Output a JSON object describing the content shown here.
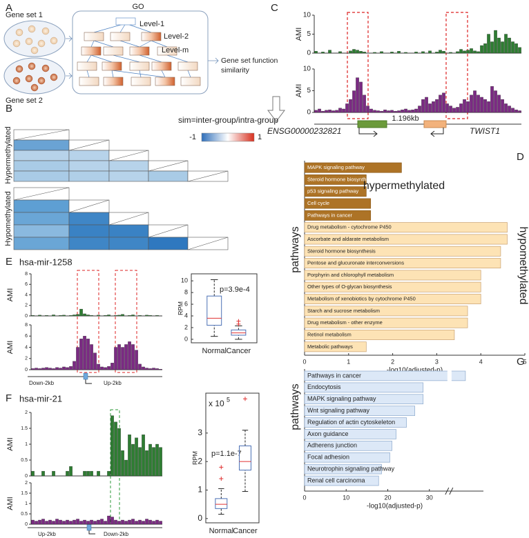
{
  "panel_labels": [
    "A",
    "B",
    "C",
    "D",
    "E",
    "F",
    "G"
  ],
  "panel_a": {
    "gene_set_1": "Gene set 1",
    "gene_set_2": "Gene set 2",
    "go": "GO",
    "level_1": "Level-1",
    "level_2": "Level-2",
    "level_m": "Level-m",
    "result": [
      "Gene set function",
      "similarity"
    ]
  },
  "panel_b": {
    "formula": "sim=inter-group/intra-group",
    "colorbar_ticks": [
      -1,
      1
    ],
    "row_groups": [
      "Hypermethylated",
      "Hypomethylated"
    ]
  },
  "gene_labels": {
    "c": [
      "1.196kb",
      "ENSG00000232821",
      "TWIST1"
    ],
    "e": [
      "hsa-mir-1258",
      "Down-2kb",
      "Up-2kb"
    ],
    "f": [
      "hsa-mir-21",
      "Up-2kb",
      "Down-2kb"
    ]
  },
  "chart_data": [
    {
      "type": "track",
      "ylabel": "AMI",
      "color": "#2e7d32",
      "ylim": [
        0,
        10
      ],
      "yticks": [
        0,
        5,
        10
      ],
      "values": [
        0.5,
        0,
        0.3,
        0,
        0.8,
        0,
        0,
        0.4,
        0,
        0,
        0.6,
        1,
        0.8,
        0.5,
        0.3,
        0,
        0,
        0.2,
        0,
        0.4,
        0,
        0,
        0.3,
        0,
        0.5,
        0,
        0.2,
        0,
        0,
        0.3,
        0,
        0.4,
        0,
        0.6,
        0,
        0.3,
        0.8,
        0.5,
        0,
        0.2,
        0,
        0.4,
        1,
        0.6,
        0.8,
        1.2,
        0.6,
        0.4,
        2,
        2.5,
        5,
        3,
        6,
        4,
        3,
        5,
        4,
        3,
        2.5,
        1.5
      ]
    },
    {
      "type": "track",
      "ylabel": "AMI",
      "color": "#7b2a83",
      "ylim": [
        0,
        10
      ],
      "yticks": [
        0,
        5,
        10
      ],
      "values": [
        0.5,
        0.8,
        0.3,
        0.5,
        0.6,
        0.4,
        0.5,
        1,
        0.8,
        2,
        3,
        5,
        8,
        7,
        4,
        1.5,
        0.8,
        0.5,
        0.4,
        0.3,
        0.6,
        0.4,
        0.5,
        0.3,
        0.4,
        0.6,
        0.8,
        0.5,
        0.6,
        0.8,
        1.5,
        3,
        3.5,
        2,
        2.5,
        3,
        4,
        4.5,
        2,
        1.5,
        1,
        1.2,
        2,
        3,
        2.5,
        4,
        5,
        4,
        3.5,
        3,
        2.5,
        6,
        5,
        4,
        3,
        2,
        1.5,
        1,
        0.6,
        0.4
      ]
    },
    {
      "type": "track",
      "ylabel": "AMI",
      "color": "#2e7d32",
      "ylim": [
        0,
        8
      ],
      "yticks": [
        0,
        2,
        4,
        6,
        8
      ],
      "values": [
        0.1,
        0,
        0.15,
        0,
        0.1,
        0,
        0.2,
        0,
        0.1,
        0.15,
        0,
        0.1,
        0.2,
        0.3,
        1.3,
        0.4,
        0.2,
        0.1,
        0,
        0.15,
        0,
        0.1,
        0.2,
        0,
        0.1,
        0.15,
        0.3,
        0,
        0.1,
        0.2,
        0,
        0.1,
        0,
        0.15,
        0.1,
        0,
        0.1,
        0
      ]
    },
    {
      "type": "track",
      "ylabel": "AMI",
      "color": "#7b2a83",
      "ylim": [
        0,
        8
      ],
      "yticks": [
        0,
        2,
        4,
        6,
        8
      ],
      "values": [
        0.2,
        0.3,
        0.2,
        0.3,
        0.4,
        0.3,
        0.2,
        0.4,
        0.3,
        0.5,
        0.4,
        0.6,
        1.5,
        4,
        5.5,
        6,
        5.5,
        4.5,
        3,
        1,
        0.5,
        0.4,
        0.6,
        1.2,
        4,
        4.5,
        4,
        4.5,
        5,
        4.5,
        3.5,
        1,
        0.5,
        0.3,
        0.2,
        0.3,
        0.2,
        0.1
      ]
    },
    {
      "type": "track",
      "ylabel": "AMI",
      "color": "#2e7d32",
      "ylim": [
        0,
        2
      ],
      "yticks": [
        0,
        0.5,
        1,
        1.5,
        2
      ],
      "values": [
        0.15,
        0,
        0,
        0.15,
        0,
        0,
        0.15,
        0,
        0,
        0,
        0.15,
        0.3,
        0,
        0,
        0,
        0.15,
        0.15,
        0.15,
        0,
        0.15,
        0,
        0,
        0.15,
        1.9,
        1.7,
        1.5,
        0.8,
        0.5,
        1.3,
        1.0,
        1.2,
        0.9,
        1.3,
        0.8,
        1.0,
        0.9,
        1.0,
        0.9
      ]
    },
    {
      "type": "track",
      "ylabel": "AMI",
      "color": "#7b2a83",
      "ylim": [
        0,
        2
      ],
      "yticks": [
        0,
        0.5,
        1,
        1.5,
        2
      ],
      "values": [
        0.2,
        0.15,
        0.2,
        0.25,
        0.15,
        0.2,
        0.15,
        0.25,
        0.2,
        0.15,
        0.2,
        0.15,
        0.2,
        0.25,
        0.15,
        0.2,
        0.15,
        0.2,
        0.15,
        0.2,
        0.25,
        0.15,
        0.4,
        0.35,
        0.2,
        0.15,
        0.2,
        0.15,
        0.2,
        0.25,
        0.15,
        0.2,
        0.15,
        0.25,
        0.2,
        0.15,
        0.2,
        0.15
      ]
    },
    {
      "type": "hbar",
      "ylabel": "pathways",
      "xlabel": "-log10(adjusted-p)",
      "annotations": [
        "hypermethylated",
        "hypomethylated"
      ],
      "categories": [
        "MAPK signaling pathway",
        "Steroid hormone biosynthesis",
        "p53 signaling pathway",
        "Cell cycle",
        "Pathways in cancer",
        "Drug metabolism - cytochrome P450",
        "Ascorbate and aldarate metabolism",
        "Steroid hormone biosynthesis",
        "Pentose and glucuronate interconversions",
        "Porphyrin and chlorophyll metabolism",
        "Other types of O-glycan biosynthesis",
        "Metabolism of xenobiotics by cytochrome P450",
        "Starch and sucrose metabolism",
        "Drug metabolism - other enzyme",
        "Retinol metabolism",
        "Metabolic pathways"
      ],
      "values": [
        2.2,
        1.4,
        1.4,
        1.5,
        1.5,
        4.6,
        4.6,
        4.45,
        4.45,
        4.0,
        4.0,
        4.0,
        3.7,
        3.7,
        3.4,
        1.4
      ],
      "colors": [
        "#ad7326",
        "#ad7326",
        "#ad7326",
        "#ad7326",
        "#ad7326",
        "#fde3b5",
        "#fde3b5",
        "#fde3b5",
        "#fde3b5",
        "#fde3b5",
        "#fde3b5",
        "#fde3b5",
        "#fde3b5",
        "#fde3b5",
        "#fde3b5",
        "#fde3b5"
      ],
      "xlim": [
        0,
        5
      ],
      "xticks": [
        0,
        1,
        2,
        3,
        4,
        5
      ]
    },
    {
      "type": "hbar",
      "ylabel": "pathways",
      "xlabel": "-log10(adjusted-p)",
      "categories": [
        "Pathways in cancer",
        "Endocytosis",
        "MAPK signaling pathway",
        "Wnt signaling pathway",
        "Regulation of actin cytoskeleton",
        "Axon guidance",
        "Adherens junction",
        "Focal adhesion",
        "Neurotrophin signaling pathway",
        "Renal cell carcinoma"
      ],
      "values": [
        47,
        28.5,
        28.5,
        26.5,
        24.5,
        22,
        21,
        20.5,
        18.5,
        17.8
      ],
      "colors": [
        "#dce8f7",
        "#dce8f7",
        "#dce8f7",
        "#dce8f7",
        "#dce8f7",
        "#dce8f7",
        "#dce8f7",
        "#dce8f7",
        "#dce8f7",
        "#dce8f7"
      ],
      "xlim": [
        0,
        50
      ],
      "xticks": [
        0,
        10,
        20,
        30
      ],
      "xbreak": [
        34,
        44
      ]
    },
    {
      "type": "box",
      "ylabel": "RPM",
      "annotation": "p=3.9e-4",
      "categories": [
        "Normal",
        "Cancer"
      ],
      "min": [
        0.5,
        0
      ],
      "q1": [
        2.4,
        0.7
      ],
      "median": [
        3.6,
        1.1
      ],
      "q3": [
        7.4,
        1.6
      ],
      "max": [
        10.2,
        2.3
      ],
      "outliers": [
        [],
        [
          3.1,
          2.6
        ]
      ],
      "ylim": [
        -0.6,
        11.2
      ],
      "yticks": [
        0,
        2,
        4,
        6,
        8,
        10
      ]
    },
    {
      "type": "box",
      "ylabel": "RPM",
      "annotation": "p=1.1e-7",
      "multiplier": [
        "x 10",
        "5"
      ],
      "categories": [
        "Normal",
        "Cancer"
      ],
      "min": [
        0.15,
        0.95
      ],
      "q1": [
        0.35,
        1.7
      ],
      "median": [
        0.5,
        2.0
      ],
      "q3": [
        0.7,
        2.55
      ],
      "max": [
        1.05,
        3.1
      ],
      "outliers": [
        [
          1.4,
          1.8
        ],
        [
          4.2
        ]
      ],
      "ylim": [
        -0.15,
        4.4
      ],
      "yticks": [
        0,
        1,
        2,
        3
      ]
    }
  ]
}
